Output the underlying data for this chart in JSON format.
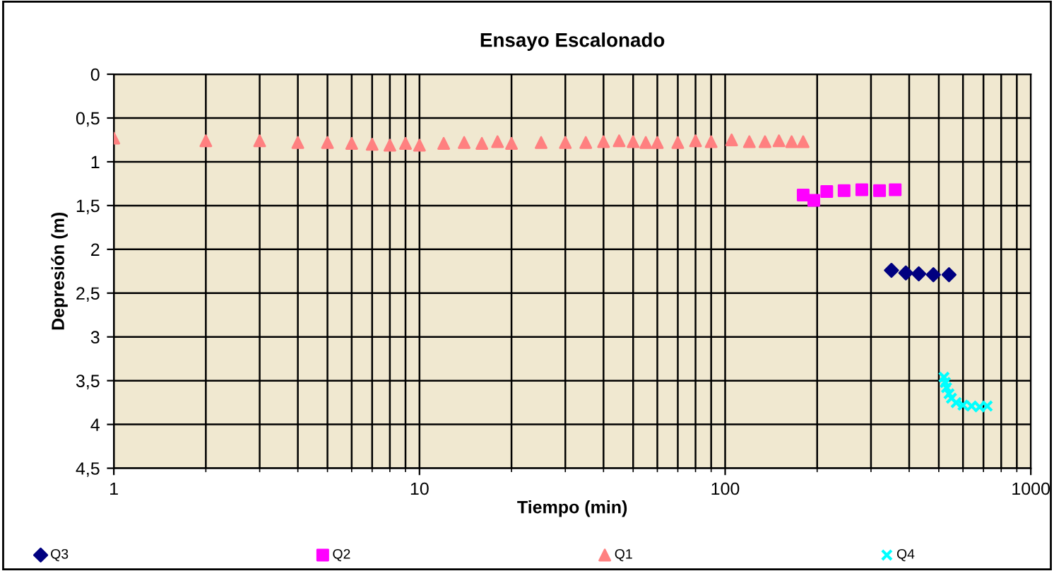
{
  "chart_data": {
    "type": "scatter",
    "title": "Ensayo Escalonado",
    "xlabel": "Tiempo (min)",
    "ylabel": "Depresión (m)",
    "log": "x",
    "xlim": [
      1,
      1000
    ],
    "xticks": [
      1,
      10,
      100,
      1000
    ],
    "ylim": [
      4.5,
      0
    ],
    "yticks": [
      {
        "value": 0,
        "label": "0"
      },
      {
        "value": 0.5,
        "label": "0,5"
      },
      {
        "value": 1,
        "label": "1"
      },
      {
        "value": 1.5,
        "label": "1,5"
      },
      {
        "value": 2,
        "label": "2"
      },
      {
        "value": 2.5,
        "label": "2,5"
      },
      {
        "value": 3,
        "label": "3"
      },
      {
        "value": 3.5,
        "label": "3,5"
      },
      {
        "value": 4,
        "label": "4"
      },
      {
        "value": 4.5,
        "label": "4,5"
      }
    ],
    "grid": true,
    "legend": "bottom",
    "series": [
      {
        "name": "Q3",
        "color": "#000080",
        "marker": "diamond",
        "x": [
          350,
          390,
          430,
          480,
          540
        ],
        "values": [
          2.24,
          2.27,
          2.28,
          2.29,
          2.29
        ]
      },
      {
        "name": "Q2",
        "color": "#ff00ff",
        "marker": "square",
        "x": [
          180,
          195,
          215,
          245,
          280,
          320,
          360
        ],
        "values": [
          1.38,
          1.44,
          1.34,
          1.33,
          1.32,
          1.33,
          1.32
        ]
      },
      {
        "name": "Q1",
        "color": "#ff8080",
        "marker": "triangle",
        "x": [
          1,
          2,
          3,
          4,
          5,
          6,
          7,
          8,
          9,
          10,
          12,
          14,
          16,
          18,
          20,
          25,
          30,
          35,
          40,
          45,
          50,
          55,
          60,
          70,
          80,
          90,
          105,
          120,
          135,
          150,
          165,
          180
        ],
        "values": [
          0.73,
          0.76,
          0.76,
          0.78,
          0.78,
          0.79,
          0.8,
          0.81,
          0.79,
          0.81,
          0.79,
          0.78,
          0.79,
          0.77,
          0.79,
          0.78,
          0.78,
          0.78,
          0.77,
          0.76,
          0.77,
          0.78,
          0.78,
          0.78,
          0.76,
          0.77,
          0.75,
          0.77,
          0.77,
          0.76,
          0.77,
          0.77
        ]
      },
      {
        "name": "Q4",
        "color": "#00ffff",
        "marker": "cross",
        "x": [
          520,
          525,
          530,
          540,
          550,
          570,
          600,
          640,
          680,
          720
        ],
        "values": [
          3.46,
          3.52,
          3.58,
          3.65,
          3.7,
          3.75,
          3.78,
          3.79,
          3.8,
          3.79
        ]
      }
    ]
  }
}
